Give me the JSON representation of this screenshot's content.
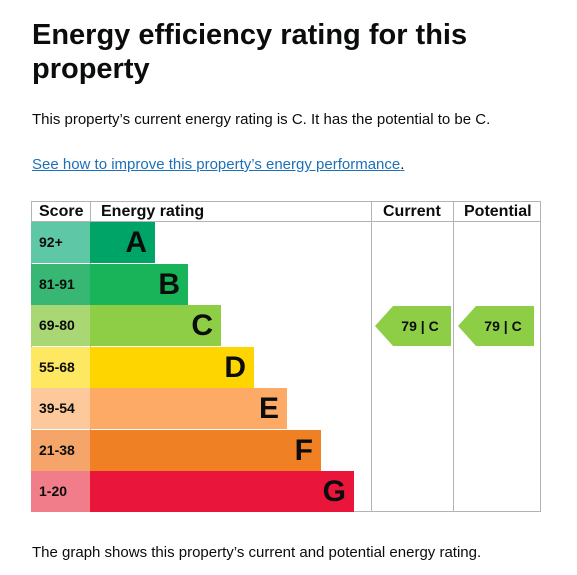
{
  "heading": "Energy efficiency rating for this property",
  "summary": "This property’s current energy rating is C. It has the potential to be C.",
  "improve_link": "See how to improve this property’s energy performance",
  "improve_link_suffix": ".",
  "footnote": "The graph shows this property’s current and potential energy rating.",
  "table": {
    "headers": {
      "score": "Score",
      "rating": "Energy rating",
      "current": "Current",
      "potential": "Potential"
    },
    "bands": [
      {
        "score": "92+",
        "letter": "A",
        "score_color": "#5ec7a6",
        "color": "#00a466"
      },
      {
        "score": "81-91",
        "letter": "B",
        "score_color": "#38b673",
        "color": "#19b459"
      },
      {
        "score": "69-80",
        "letter": "C",
        "score_color": "#a9d774",
        "color": "#8dce46"
      },
      {
        "score": "55-68",
        "letter": "D",
        "score_color": "#ffe861",
        "color": "#ffd500"
      },
      {
        "score": "39-54",
        "letter": "E",
        "score_color": "#fdc99b",
        "color": "#fcaa65"
      },
      {
        "score": "21-38",
        "letter": "F",
        "score_color": "#f6a56a",
        "color": "#ef8023"
      },
      {
        "score": "1-20",
        "letter": "G",
        "score_color": "#f07d89",
        "color": "#e9153b"
      }
    ],
    "current": {
      "label": "79 | C",
      "band_index": 2,
      "color": "#8dce46"
    },
    "potential": {
      "label": "79 | C",
      "band_index": 2,
      "color": "#8dce46"
    }
  }
}
